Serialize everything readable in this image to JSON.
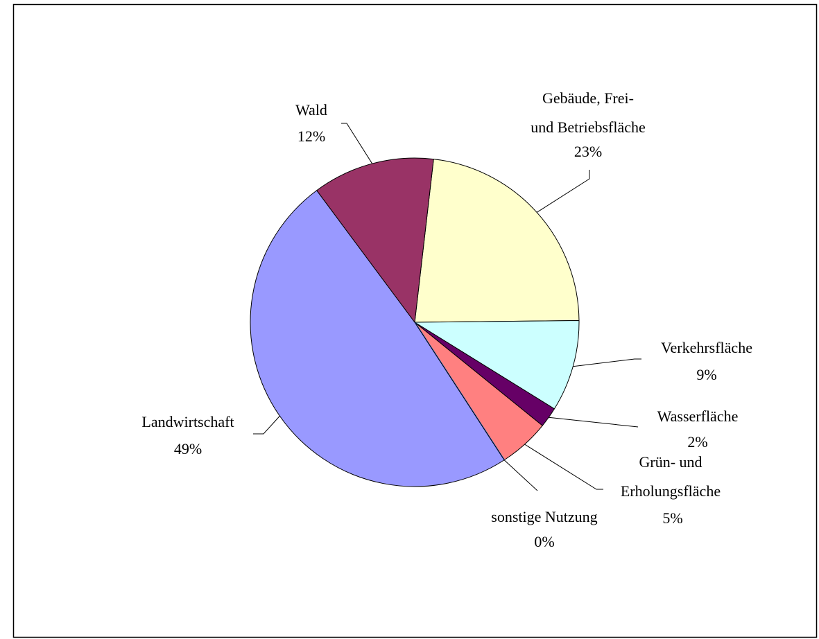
{
  "chart_data": {
    "type": "pie",
    "categories": [
      "Gebäude, Frei-\nund Betriebsfläche",
      "Verkehrsfläche",
      "Wasserfläche",
      "Grün- und\nErholungsfläche",
      "sonstige Nutzung",
      "Landwirtschaft",
      "Wald"
    ],
    "values": [
      23,
      9,
      2,
      5,
      0,
      49,
      12
    ],
    "value_labels": [
      "23%",
      "9%",
      "2%",
      "5%",
      "0%",
      "49%",
      "12%"
    ],
    "colors": [
      "#ffffcc",
      "#ccffff",
      "#660066",
      "#ff8080",
      "#0066cc",
      "#9999ff",
      "#993366"
    ]
  }
}
